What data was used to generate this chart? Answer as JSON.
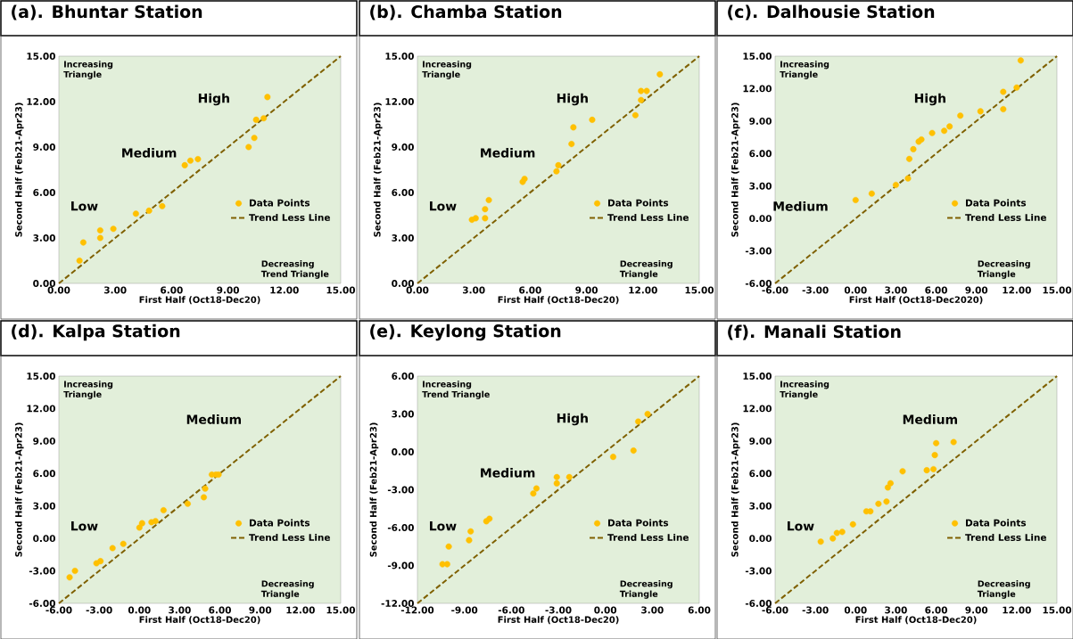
{
  "chart_data": [
    {
      "type": "scatter",
      "title": "(a). Bhuntar Station",
      "xlabel": "First Half (Oct18-Dec20)",
      "ylabel": "Second Half (Feb21-Apr23)",
      "xlim": [
        0,
        15
      ],
      "ylim": [
        0,
        15
      ],
      "xticks": [
        {
          "value": 0,
          "label": "0.00"
        },
        {
          "value": 3,
          "label": "3.00"
        },
        {
          "value": 6,
          "label": "6.00"
        },
        {
          "value": 9,
          "label": "9.00"
        },
        {
          "value": 12,
          "label": "12.00"
        },
        {
          "value": 15,
          "label": "15.00"
        }
      ],
      "yticks": [
        {
          "value": 0,
          "label": "0.00"
        },
        {
          "value": 3,
          "label": "3.00"
        },
        {
          "value": 6,
          "label": "6.00"
        },
        {
          "value": 9,
          "label": "9.00"
        },
        {
          "value": 12,
          "label": "12.00"
        },
        {
          "value": 15,
          "label": "15.00"
        }
      ],
      "legend": "right",
      "series": [
        {
          "name": "Data Points",
          "marker": "circle",
          "color": "#ffc000",
          "x": [
            1.1,
            1.3,
            2.2,
            2.2,
            2.9,
            4.1,
            4.8,
            5.5,
            6.7,
            7.0,
            7.4,
            10.1,
            10.4,
            10.5,
            10.9,
            11.1
          ],
          "values": [
            1.5,
            2.7,
            3.5,
            3.0,
            3.6,
            4.6,
            4.8,
            5.1,
            7.8,
            8.1,
            8.2,
            9.0,
            9.6,
            10.8,
            10.9,
            12.3
          ]
        },
        {
          "name": "Trend Less Line",
          "type": "line",
          "line_style": "dashed",
          "color": "#7f6000",
          "x": [
            0,
            15
          ],
          "values": [
            0,
            15
          ]
        }
      ],
      "annotations": [
        "Increasing Triangle",
        "Decreasing Trend Triangle",
        "Low",
        "Medium",
        "High"
      ]
    },
    {
      "type": "scatter",
      "title": "(b). Chamba Station",
      "xlabel": "First Half (Oct18-Dec20)",
      "ylabel": "Second Half (Feb21-Apr23)",
      "xlim": [
        0,
        15
      ],
      "ylim": [
        0,
        15
      ],
      "xticks": [
        {
          "value": 0,
          "label": "0.00"
        },
        {
          "value": 3,
          "label": "3.00"
        },
        {
          "value": 6,
          "label": "6.00"
        },
        {
          "value": 9,
          "label": "9.00"
        },
        {
          "value": 12,
          "label": "12.00"
        },
        {
          "value": 15,
          "label": "15.00"
        }
      ],
      "yticks": [
        {
          "value": 0,
          "label": "0.00"
        },
        {
          "value": 3,
          "label": "3.00"
        },
        {
          "value": 6,
          "label": "6.00"
        },
        {
          "value": 9,
          "label": "9.00"
        },
        {
          "value": 12,
          "label": "12.00"
        },
        {
          "value": 15,
          "label": "15.00"
        }
      ],
      "legend": "right",
      "series": [
        {
          "name": "Data Points",
          "marker": "circle",
          "color": "#ffc000",
          "x": [
            2.9,
            3.1,
            3.6,
            3.6,
            3.8,
            5.6,
            5.7,
            7.4,
            7.5,
            8.2,
            8.3,
            9.3,
            11.6,
            11.9,
            11.9,
            12.2,
            12.9
          ],
          "values": [
            4.2,
            4.3,
            4.3,
            4.9,
            5.5,
            6.7,
            6.9,
            7.4,
            7.8,
            9.2,
            10.3,
            10.8,
            11.1,
            12.1,
            12.7,
            12.7,
            13.8
          ]
        },
        {
          "name": "Trend Less Line",
          "type": "line",
          "line_style": "dashed",
          "color": "#7f6000",
          "x": [
            0,
            15
          ],
          "values": [
            0,
            15
          ]
        }
      ],
      "annotations": [
        "Increasing Triangle",
        "Decreasing Triangle",
        "Low",
        "Medium",
        "High"
      ]
    },
    {
      "type": "scatter",
      "title": "(c). Dalhousie Station",
      "xlabel": "First Half (Oct18-Dec2020)",
      "ylabel": "Second Half (Feb21-Apr23)",
      "xlim": [
        -6,
        15
      ],
      "ylim": [
        -6,
        15
      ],
      "xticks": [
        {
          "value": -6,
          "label": "-6.00"
        },
        {
          "value": -3,
          "label": "-3.00"
        },
        {
          "value": 0,
          "label": "0.00"
        },
        {
          "value": 3,
          "label": "3.00"
        },
        {
          "value": 6,
          "label": "6.00"
        },
        {
          "value": 9,
          "label": "9.00"
        },
        {
          "value": 12,
          "label": "12.00"
        },
        {
          "value": 15,
          "label": "15.00"
        }
      ],
      "yticks": [
        {
          "value": -6,
          "label": "-6.00"
        },
        {
          "value": -3,
          "label": "-3.00"
        },
        {
          "value": 0,
          "label": "0.00"
        },
        {
          "value": 3,
          "label": "3.00"
        },
        {
          "value": 6,
          "label": "6.00"
        },
        {
          "value": 9,
          "label": "9.00"
        },
        {
          "value": 12,
          "label": "12.00"
        },
        {
          "value": 15,
          "label": "15.00"
        }
      ],
      "legend": "right",
      "series": [
        {
          "name": "Data Points",
          "marker": "circle",
          "color": "#ffc000",
          "x": [
            0.0,
            1.2,
            3.0,
            3.9,
            4.0,
            4.3,
            4.7,
            4.9,
            5.7,
            6.6,
            7.0,
            7.8,
            9.3,
            11.0,
            11.0,
            12.0,
            12.3
          ],
          "values": [
            1.7,
            2.3,
            3.1,
            3.7,
            5.5,
            6.4,
            7.1,
            7.3,
            7.9,
            8.1,
            8.5,
            9.5,
            9.9,
            10.1,
            11.7,
            12.1,
            14.6
          ]
        },
        {
          "name": "Trend Less Line",
          "type": "line",
          "line_style": "dashed",
          "color": "#7f6000",
          "x": [
            -6,
            15
          ],
          "values": [
            -6,
            15
          ]
        }
      ],
      "annotations": [
        "Increasing Triangle",
        "Decreasing Triangle",
        "Medium",
        "High"
      ]
    },
    {
      "type": "scatter",
      "title": "(d). Kalpa Station",
      "xlabel": "First Half (Oct18-Dec20)",
      "ylabel": "Second Half (Feb21-Apr23)",
      "xlim": [
        -6,
        15
      ],
      "ylim": [
        -6,
        15
      ],
      "xticks": [
        {
          "value": -6,
          "label": "-6.00"
        },
        {
          "value": -3,
          "label": "-3.00"
        },
        {
          "value": 0,
          "label": "0.00"
        },
        {
          "value": 3,
          "label": "3.00"
        },
        {
          "value": 6,
          "label": "6.00"
        },
        {
          "value": 9,
          "label": "9.00"
        },
        {
          "value": 12,
          "label": "12.00"
        },
        {
          "value": 15,
          "label": "15.00"
        }
      ],
      "yticks": [
        {
          "value": -6,
          "label": "-6.00"
        },
        {
          "value": -3,
          "label": "-3.00"
        },
        {
          "value": 0,
          "label": "0.00"
        },
        {
          "value": 3,
          "label": "3.00"
        },
        {
          "value": 6,
          "label": "6.00"
        },
        {
          "value": 9,
          "label": "9.00"
        },
        {
          "value": 12,
          "label": "12.00"
        },
        {
          "value": 15,
          "label": "15.00"
        }
      ],
      "legend": "right",
      "series": [
        {
          "name": "Data Points",
          "marker": "circle",
          "color": "#ffc000",
          "x": [
            -5.2,
            -4.8,
            -3.2,
            -2.9,
            -2.0,
            -1.2,
            0.0,
            0.2,
            0.9,
            1.2,
            1.8,
            3.6,
            4.8,
            4.9,
            5.4,
            5.7,
            5.9
          ],
          "values": [
            -3.6,
            -3.0,
            -2.3,
            -2.1,
            -0.9,
            -0.5,
            1.0,
            1.4,
            1.5,
            1.6,
            2.6,
            3.2,
            3.8,
            4.6,
            5.9,
            5.9,
            5.9
          ]
        },
        {
          "name": "Trend Less Line",
          "type": "line",
          "line_style": "dashed",
          "color": "#7f6000",
          "x": [
            -6,
            15
          ],
          "values": [
            -6,
            15
          ]
        }
      ],
      "annotations": [
        "Increasing Triangle",
        "Decreasing Triangle",
        "Low",
        "Medium"
      ]
    },
    {
      "type": "scatter",
      "title": "(e). Keylong Station",
      "xlabel": "First Half (Oct18-Dec20)",
      "ylabel": "Second Half (Feb21-Apr23)",
      "xlim": [
        -12,
        6
      ],
      "ylim": [
        -12,
        6
      ],
      "xticks": [
        {
          "value": -12,
          "label": "-12.00"
        },
        {
          "value": -9,
          "label": "-9.00"
        },
        {
          "value": -6,
          "label": "-6.00"
        },
        {
          "value": -3,
          "label": "-3.00"
        },
        {
          "value": 0,
          "label": "0.00"
        },
        {
          "value": 3,
          "label": "3.00"
        },
        {
          "value": 6,
          "label": "6.00"
        }
      ],
      "yticks": [
        {
          "value": -12,
          "label": "-12.00"
        },
        {
          "value": -9,
          "label": "-9.00"
        },
        {
          "value": -6,
          "label": "-6.00"
        },
        {
          "value": -3,
          "label": "-3.00"
        },
        {
          "value": 0,
          "label": "0.00"
        },
        {
          "value": 3,
          "label": "3.00"
        },
        {
          "value": 6,
          "label": "6.00"
        }
      ],
      "legend": "right",
      "series": [
        {
          "name": "Data Points",
          "marker": "circle",
          "color": "#ffc000",
          "x": [
            -10.4,
            -10.1,
            -10.0,
            -8.7,
            -8.6,
            -7.6,
            -7.4,
            -4.6,
            -4.4,
            -3.1,
            -3.1,
            -2.3,
            0.5,
            1.8,
            2.1,
            2.7
          ],
          "values": [
            -8.9,
            -8.9,
            -7.5,
            -7.0,
            -6.3,
            -5.5,
            -5.3,
            -3.3,
            -2.9,
            -2.5,
            -2.0,
            -2.0,
            -0.4,
            0.1,
            2.4,
            3.0
          ]
        },
        {
          "name": "Trend Less Line",
          "type": "line",
          "line_style": "dashed",
          "color": "#7f6000",
          "x": [
            -12,
            6
          ],
          "values": [
            -12,
            6
          ]
        }
      ],
      "annotations": [
        "Increasing Trend Triangle",
        "Decreasing Triangle",
        "Low",
        "Medium",
        "High"
      ]
    },
    {
      "type": "scatter",
      "title": "(f). Manali Station",
      "xlabel": "First Half (Oct18-Dec20)",
      "ylabel": "Second Half (Feb21-Apr23)",
      "xlim": [
        -6,
        15
      ],
      "ylim": [
        -6,
        15
      ],
      "xticks": [
        {
          "value": -6,
          "label": "-6.00"
        },
        {
          "value": -3,
          "label": "-3.00"
        },
        {
          "value": 0,
          "label": "0.00"
        },
        {
          "value": 3,
          "label": "3.00"
        },
        {
          "value": 6,
          "label": "6.00"
        },
        {
          "value": 9,
          "label": "9.00"
        },
        {
          "value": 12,
          "label": "12.00"
        },
        {
          "value": 15,
          "label": "15.00"
        }
      ],
      "yticks": [
        {
          "value": -6,
          "label": "-6.00"
        },
        {
          "value": -3,
          "label": "-3.00"
        },
        {
          "value": 0,
          "label": "0.00"
        },
        {
          "value": 3,
          "label": "3.00"
        },
        {
          "value": 6,
          "label": "6.00"
        },
        {
          "value": 9,
          "label": "9.00"
        },
        {
          "value": 12,
          "label": "12.00"
        },
        {
          "value": 15,
          "label": "15.00"
        }
      ],
      "legend": "right",
      "series": [
        {
          "name": "Data Points",
          "marker": "circle",
          "color": "#ffc000",
          "x": [
            -2.6,
            -1.7,
            -1.4,
            -1.0,
            -0.2,
            0.8,
            1.1,
            1.7,
            2.3,
            2.4,
            2.6,
            3.5,
            5.3,
            5.8,
            5.9,
            6.0,
            7.3
          ],
          "values": [
            -0.3,
            0.0,
            0.5,
            0.6,
            1.3,
            2.5,
            2.5,
            3.2,
            3.4,
            4.7,
            5.1,
            6.2,
            6.3,
            6.4,
            7.7,
            8.8,
            8.9
          ]
        },
        {
          "name": "Trend Less Line",
          "type": "line",
          "line_style": "dashed",
          "color": "#7f6000",
          "x": [
            -6,
            15
          ],
          "values": [
            -6,
            15
          ]
        }
      ],
      "annotations": [
        "Increasing Triangle",
        "Decreasing Triangle",
        "Low",
        "Medium"
      ]
    }
  ]
}
